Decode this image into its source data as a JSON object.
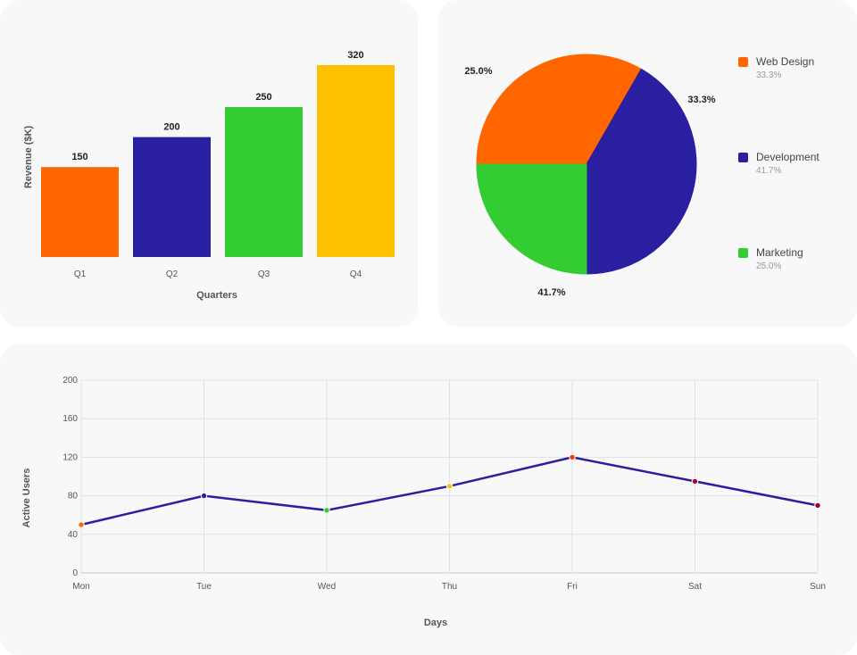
{
  "chart_data": [
    {
      "type": "bar",
      "categories": [
        "Q1",
        "Q2",
        "Q3",
        "Q4"
      ],
      "values": [
        150,
        200,
        250,
        320
      ],
      "colors": [
        "#ff6600",
        "#2a1fa0",
        "#33cc33",
        "#ffc000"
      ],
      "xlabel": "Quarters",
      "ylabel": "Revenue ($K)",
      "value_labels": [
        "150",
        "200",
        "250",
        "320"
      ]
    },
    {
      "type": "pie",
      "slices": [
        {
          "name": "Web Design",
          "percent": 33.3,
          "color": "#ff6600"
        },
        {
          "name": "Development",
          "percent": 41.7,
          "color": "#2a1fa0"
        },
        {
          "name": "Marketing",
          "percent": 25.0,
          "color": "#33cc33"
        }
      ],
      "slice_labels": [
        "33.3%",
        "41.7%",
        "25.0%"
      ],
      "legend": [
        {
          "name": "Web Design",
          "pct": "33.3%",
          "color": "#ff6600"
        },
        {
          "name": "Development",
          "pct": "41.7%",
          "color": "#2a1fa0"
        },
        {
          "name": "Marketing",
          "pct": "25.0%",
          "color": "#33cc33"
        }
      ],
      "legend_placement": "right"
    },
    {
      "type": "line",
      "x": [
        "Mon",
        "Tue",
        "Wed",
        "Thu",
        "Fri",
        "Sat",
        "Sun"
      ],
      "values": [
        50,
        80,
        65,
        90,
        120,
        95,
        70
      ],
      "point_colors": [
        "#ff6600",
        "#2a1fa0",
        "#33cc33",
        "#ffc000",
        "#ff3300",
        "#b0003a",
        "#99003a"
      ],
      "line_color": "#2a1fa0",
      "ylim": [
        0,
        200
      ],
      "yticks": [
        0,
        40,
        80,
        120,
        160,
        200
      ],
      "xlabel": "Days",
      "ylabel": "Active Users",
      "grid": true
    }
  ]
}
